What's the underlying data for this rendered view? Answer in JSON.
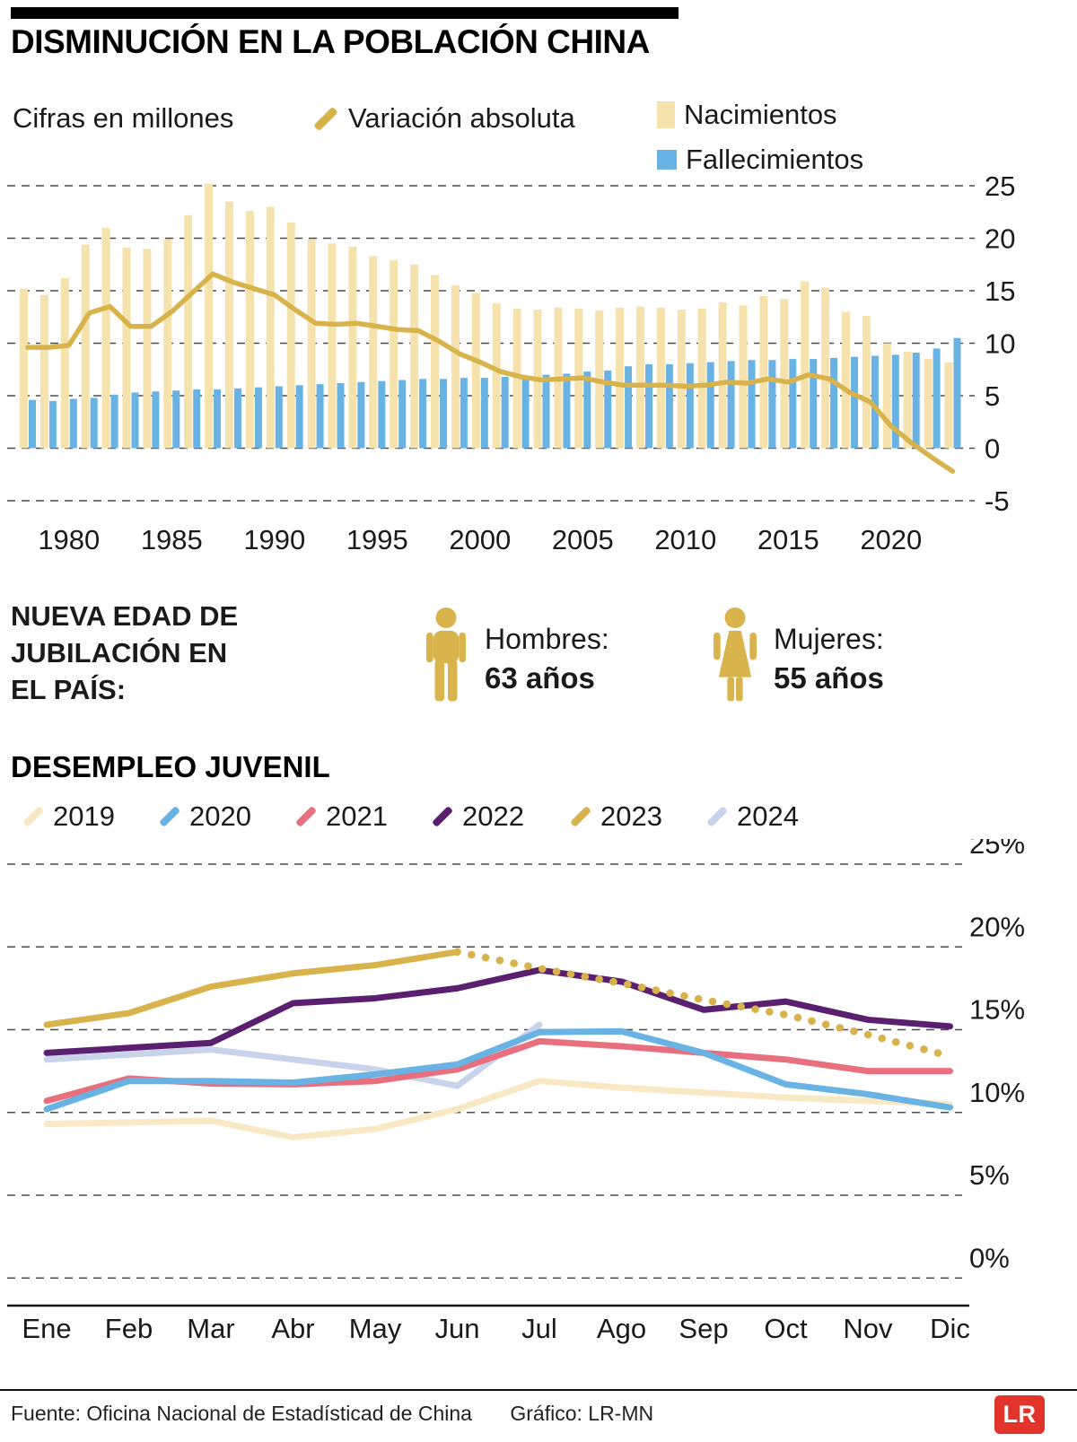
{
  "header": {
    "title": "DISMINUCIÓN EN LA POBLACIÓN CHINA"
  },
  "population": {
    "units_note": "Cifras en millones"
  },
  "retirement": {
    "title_lines": [
      "NUEVA EDAD DE",
      "JUBILACIÓN EN",
      "EL PAÍS:"
    ],
    "men_label": "Hombres:",
    "men_value": "63 años",
    "women_label": "Mujeres:",
    "women_value": "55 años",
    "icon_color": "#D9B34B"
  },
  "footer": {
    "source": "Fuente: Oficina Nacional de Estadísticad de China",
    "credit": "Gráfico: LR-MN",
    "logo": "LR",
    "logo_color": "#E2342B"
  },
  "chart_data": [
    {
      "type": "bar+line",
      "title": "Disminución en la población china",
      "unit_note": "Cifras en millones",
      "start_year": 1978,
      "end_year": 2023,
      "ylim": [
        -5,
        25
      ],
      "yticks": [
        25,
        20,
        15,
        10,
        5,
        0,
        -5
      ],
      "xticks": [
        1980,
        1985,
        1990,
        1995,
        2000,
        2005,
        2010,
        2015,
        2020
      ],
      "grid": true,
      "legend_position": "top",
      "series": [
        {
          "name": "Nacimientos",
          "type": "bar",
          "color": "#F6E2AD",
          "values": [
            15.2,
            14.6,
            16.2,
            19.4,
            21.0,
            19.1,
            19.0,
            19.9,
            22.2,
            25.2,
            23.5,
            22.6,
            23.0,
            21.5,
            19.9,
            19.5,
            19.2,
            18.3,
            17.9,
            17.5,
            16.5,
            15.5,
            14.8,
            13.8,
            13.3,
            13.2,
            13.4,
            13.3,
            13.1,
            13.4,
            13.5,
            13.4,
            13.2,
            13.3,
            13.9,
            13.6,
            14.5,
            14.2,
            15.9,
            15.3,
            13.0,
            12.6,
            10.0,
            9.2,
            8.5,
            8.2
          ]
        },
        {
          "name": "Fallecimientos",
          "type": "bar",
          "color": "#69B2E4",
          "values": [
            4.6,
            4.5,
            4.7,
            4.8,
            5.1,
            5.3,
            5.4,
            5.5,
            5.6,
            5.6,
            5.7,
            5.8,
            5.9,
            6.0,
            6.1,
            6.2,
            6.3,
            6.4,
            6.5,
            6.6,
            6.6,
            6.7,
            6.7,
            6.8,
            6.9,
            7.0,
            7.1,
            7.3,
            7.4,
            7.8,
            8.0,
            8.0,
            8.1,
            8.2,
            8.3,
            8.4,
            8.4,
            8.5,
            8.5,
            8.6,
            8.7,
            8.8,
            8.9,
            9.1,
            9.5,
            10.5
          ]
        },
        {
          "name": "Variación absoluta",
          "type": "line",
          "color": "#D8B24A",
          "values": [
            9.6,
            9.6,
            9.8,
            12.9,
            13.5,
            11.6,
            11.6,
            13.0,
            14.8,
            16.6,
            15.8,
            15.2,
            14.6,
            13.2,
            11.9,
            11.8,
            11.9,
            11.6,
            11.3,
            11.2,
            10.2,
            9.0,
            8.2,
            7.3,
            6.8,
            6.5,
            6.6,
            6.7,
            6.3,
            6.0,
            6.0,
            6.0,
            5.9,
            6.0,
            6.3,
            6.2,
            6.6,
            6.3,
            7.0,
            6.6,
            5.3,
            4.4,
            2.1,
            0.5,
            -0.9,
            -2.2
          ]
        }
      ]
    },
    {
      "type": "line",
      "title": "DESEMPLEO JUVENIL",
      "categories": [
        "Ene",
        "Feb",
        "Mar",
        "Abr",
        "May",
        "Jun",
        "Jul",
        "Ago",
        "Sep",
        "Oct",
        "Nov",
        "Dic"
      ],
      "ylim": [
        0,
        25
      ],
      "yticks": [
        25,
        20,
        15,
        10,
        5,
        0
      ],
      "ytick_suffix": "%",
      "grid": true,
      "legend_position": "top",
      "series": [
        {
          "name": "2019",
          "color": "#F8E8C4",
          "values": [
            9.3,
            9.4,
            9.5,
            8.5,
            9.0,
            10.2,
            11.9,
            11.5,
            11.2,
            10.9,
            10.7,
            10.5
          ]
        },
        {
          "name": "2020",
          "color": "#69B2E4",
          "values": [
            10.2,
            11.9,
            11.9,
            11.8,
            12.3,
            12.9,
            14.85,
            14.9,
            13.6,
            11.7,
            11.1,
            10.3
          ]
        },
        {
          "name": "2021",
          "color": "#E8707E",
          "values": [
            10.7,
            12.05,
            11.75,
            11.7,
            11.9,
            12.6,
            14.3,
            14.0,
            13.6,
            13.2,
            12.5,
            12.5
          ]
        },
        {
          "name": "2022",
          "color": "#5B1F70",
          "values": [
            13.6,
            13.9,
            14.2,
            16.6,
            16.9,
            17.5,
            18.6,
            17.9,
            16.2,
            16.7,
            15.6,
            15.2
          ]
        },
        {
          "name": "2023",
          "color": "#D8B24A",
          "dashed_from": 5,
          "dash_note": "línea punteada de Jul a Dic",
          "values": [
            15.3,
            16.0,
            17.6,
            18.4,
            18.9,
            19.7,
            18.7,
            17.8,
            16.8,
            15.9,
            14.7,
            13.4
          ]
        },
        {
          "name": "2024",
          "color": "#C8D3EC",
          "values": [
            13.2,
            13.5,
            13.8,
            13.2,
            12.6,
            11.6,
            15.3,
            null,
            null,
            null,
            null,
            null
          ]
        }
      ]
    }
  ]
}
